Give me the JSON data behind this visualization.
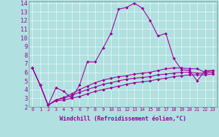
{
  "xlabel": "Windchill (Refroidissement éolien,°C)",
  "background_color": "#b0e0e0",
  "line_color": "#990099",
  "xlim": [
    -0.5,
    23.5
  ],
  "ylim": [
    2,
    14.2
  ],
  "xticks": [
    0,
    1,
    2,
    3,
    4,
    5,
    6,
    7,
    8,
    9,
    10,
    11,
    12,
    13,
    14,
    15,
    16,
    17,
    18,
    19,
    20,
    21,
    22,
    23
  ],
  "yticks": [
    2,
    3,
    4,
    5,
    6,
    7,
    8,
    9,
    10,
    11,
    12,
    13,
    14
  ],
  "series": [
    [
      6.5,
      4.5,
      2.2,
      4.2,
      3.8,
      3.0,
      4.5,
      7.2,
      7.2,
      8.8,
      10.5,
      13.3,
      13.5,
      14.0,
      13.4,
      12.0,
      10.2,
      10.5,
      7.6,
      6.3,
      6.2,
      5.0,
      6.2,
      6.2
    ],
    [
      6.5,
      4.5,
      2.2,
      2.8,
      3.1,
      3.5,
      4.0,
      4.4,
      4.8,
      5.1,
      5.3,
      5.5,
      5.6,
      5.8,
      5.9,
      6.0,
      6.2,
      6.4,
      6.5,
      6.5,
      6.4,
      6.4,
      6.0,
      6.2
    ],
    [
      6.5,
      4.5,
      2.2,
      2.8,
      3.0,
      3.3,
      3.7,
      4.0,
      4.3,
      4.6,
      4.8,
      5.0,
      5.2,
      5.3,
      5.4,
      5.5,
      5.7,
      5.8,
      5.9,
      6.0,
      6.0,
      5.9,
      5.9,
      6.0
    ],
    [
      6.5,
      4.5,
      2.2,
      2.7,
      2.8,
      3.0,
      3.2,
      3.5,
      3.8,
      4.0,
      4.2,
      4.4,
      4.6,
      4.8,
      4.9,
      5.0,
      5.2,
      5.3,
      5.5,
      5.6,
      5.7,
      5.7,
      5.7,
      5.8
    ]
  ],
  "xlabel_fontsize": 6.0,
  "xtick_fontsize": 5.0,
  "ytick_fontsize": 6.0,
  "linewidth": 0.8,
  "markersize": 2.0
}
